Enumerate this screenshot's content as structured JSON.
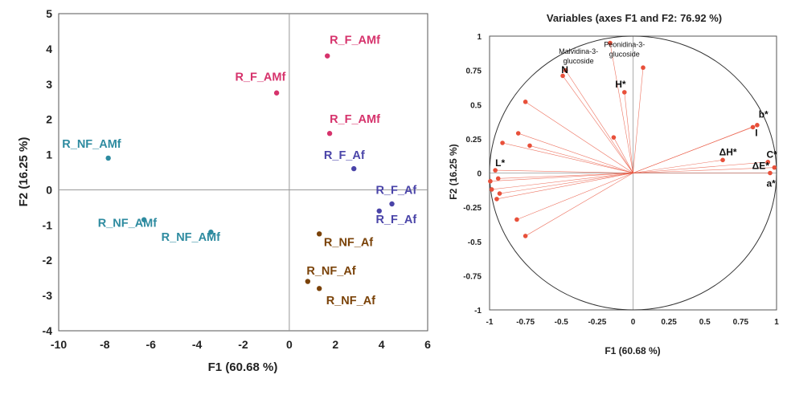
{
  "chart_data": [
    {
      "type": "scatter",
      "title": "",
      "xlabel": "F1 (60.68 %)",
      "ylabel": "F2 (16.25 %)",
      "xlim": [
        -10,
        6
      ],
      "ylim": [
        -4,
        5
      ],
      "xticks": [
        -10,
        -8,
        -6,
        -4,
        -2,
        0,
        2,
        4,
        6
      ],
      "yticks": [
        -4,
        -3,
        -2,
        -1,
        0,
        1,
        2,
        3,
        4,
        5
      ],
      "grid": false,
      "series": [
        {
          "name": "R_F_AMf",
          "color": "#d6336c",
          "points": [
            {
              "x": 1.65,
              "y": 3.8,
              "label": "R_F_AMf",
              "lx": 1.75,
              "ly": 4.15
            },
            {
              "x": -0.55,
              "y": 2.75,
              "label": "R_F_AMf",
              "lx": -2.35,
              "ly": 3.1
            },
            {
              "x": 1.75,
              "y": 1.6,
              "label": "R_F_AMf",
              "lx": 1.75,
              "ly": 1.9
            }
          ]
        },
        {
          "name": "R_F_Af",
          "color": "#4a44a8",
          "points": [
            {
              "x": 2.8,
              "y": 0.6,
              "label": "R_F_Af",
              "lx": 1.5,
              "ly": 0.88
            },
            {
              "x": 4.45,
              "y": -0.4,
              "label": "R_F_Af",
              "lx": 3.75,
              "ly": -0.12
            },
            {
              "x": 3.9,
              "y": -0.6,
              "label": "R_F_Af",
              "lx": 3.75,
              "ly": -0.95
            }
          ]
        },
        {
          "name": "R_NF_AMf",
          "color": "#2e8ba0",
          "points": [
            {
              "x": -7.85,
              "y": 0.9,
              "label": "R_NF_AMf",
              "lx": -9.85,
              "ly": 1.2
            },
            {
              "x": -6.3,
              "y": -0.85,
              "label": "R_NF_AMf",
              "lx": -8.3,
              "ly": -1.05
            },
            {
              "x": -3.4,
              "y": -1.2,
              "label": "R_NF_AMf",
              "lx": -5.55,
              "ly": -1.45
            }
          ]
        },
        {
          "name": "R_NF_Af",
          "color": "#7a4208",
          "points": [
            {
              "x": 1.3,
              "y": -1.25,
              "label": "R_NF_Af",
              "lx": 1.5,
              "ly": -1.6
            },
            {
              "x": 0.8,
              "y": -2.6,
              "label": "R_NF_Af",
              "lx": 0.75,
              "ly": -2.4
            },
            {
              "x": 1.3,
              "y": -2.8,
              "label": "R_NF_Af",
              "lx": 1.6,
              "ly": -3.25
            }
          ]
        }
      ]
    },
    {
      "type": "scatter",
      "title": "Variables (axes F1 and F2: 76.92 %)",
      "xlabel": "F1 (60.68 %)",
      "ylabel": "F2 (16.25 %)",
      "xlim": [
        -1,
        1
      ],
      "ylim": [
        -1,
        1
      ],
      "xticks": [
        -1,
        -0.75,
        -0.5,
        -0.25,
        0,
        0.25,
        0.5,
        0.75,
        1
      ],
      "yticks": [
        -1,
        -0.75,
        -0.5,
        -0.25,
        0,
        0.25,
        0.5,
        0.75,
        1
      ],
      "grid": false,
      "correlation_circle": true,
      "color": "#e8503a",
      "labels": [
        {
          "text": "Malvidina-3-",
          "x": -0.38,
          "y": 0.87
        },
        {
          "text": "glucoside",
          "x": -0.38,
          "y": 0.8
        },
        {
          "text": "Peonidina-3-",
          "x": -0.06,
          "y": 0.92
        },
        {
          "text": "glucoside",
          "x": -0.06,
          "y": 0.85
        },
        {
          "text": "N",
          "x": -0.5,
          "y": 0.73
        },
        {
          "text": "H*",
          "x": -0.125,
          "y": 0.625
        },
        {
          "text": "b*",
          "x": 0.875,
          "y": 0.405
        },
        {
          "text": "I",
          "x": 0.85,
          "y": 0.27
        },
        {
          "text": "ΔH*",
          "x": 0.6,
          "y": 0.13
        },
        {
          "text": "C*",
          "x": 0.93,
          "y": 0.11
        },
        {
          "text": "ΔE*",
          "x": 0.83,
          "y": 0.03
        },
        {
          "text": "a*",
          "x": 0.93,
          "y": -0.1
        },
        {
          "text": "L*",
          "x": -0.96,
          "y": 0.05
        }
      ],
      "vectors": [
        {
          "x": -0.47,
          "y": 0.75
        },
        {
          "x": -0.49,
          "y": 0.71
        },
        {
          "x": -0.16,
          "y": 0.95
        },
        {
          "x": 0.07,
          "y": 0.77
        },
        {
          "x": -0.06,
          "y": 0.59
        },
        {
          "x": -0.135,
          "y": 0.26
        },
        {
          "x": -0.75,
          "y": 0.52
        },
        {
          "x": -0.8,
          "y": 0.29
        },
        {
          "x": -0.72,
          "y": 0.2
        },
        {
          "x": -0.91,
          "y": 0.22
        },
        {
          "x": -0.96,
          "y": 0.02
        },
        {
          "x": -0.94,
          "y": -0.04
        },
        {
          "x": -0.995,
          "y": -0.06
        },
        {
          "x": -0.985,
          "y": -0.12
        },
        {
          "x": -0.93,
          "y": -0.15
        },
        {
          "x": -0.95,
          "y": -0.19
        },
        {
          "x": -0.81,
          "y": -0.34
        },
        {
          "x": -0.75,
          "y": -0.46
        },
        {
          "x": 0.865,
          "y": 0.35
        },
        {
          "x": 0.835,
          "y": 0.335
        },
        {
          "x": 0.625,
          "y": 0.095
        },
        {
          "x": 0.94,
          "y": 0.08
        },
        {
          "x": 0.985,
          "y": 0.04
        },
        {
          "x": 0.955,
          "y": 0.0
        }
      ]
    }
  ]
}
